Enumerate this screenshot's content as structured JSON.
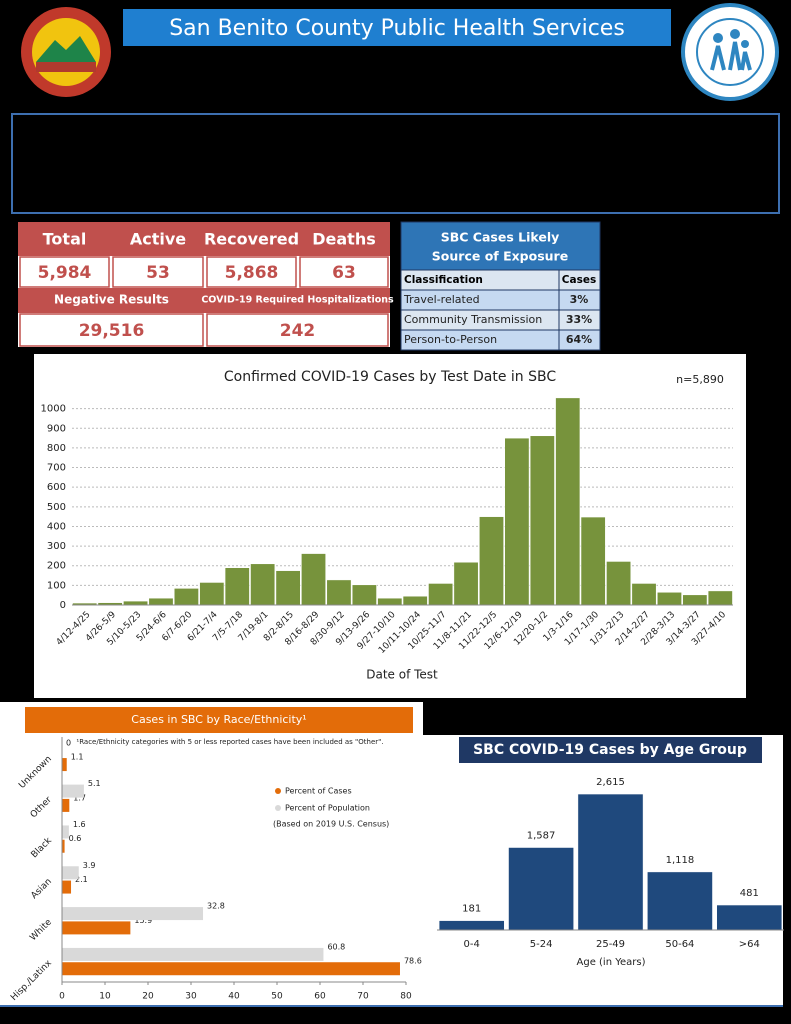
{
  "header": {
    "title": "San Benito County Public Health Services"
  },
  "summary": {
    "headers": [
      "Total",
      "Active",
      "Recovered",
      "Deaths"
    ],
    "values": [
      "5,984",
      "53",
      "5,868",
      "63"
    ],
    "headers2": [
      "Negative Results",
      "COVID-19 Required Hospitalizations"
    ],
    "values2": [
      "29,516",
      "242"
    ]
  },
  "exposure": {
    "title_lines": [
      "SBC Cases Likely",
      "Source of Exposure"
    ],
    "columns": [
      "Classification",
      "Cases"
    ],
    "rows": [
      [
        "Travel-related",
        "3%"
      ],
      [
        "Community Transmission",
        "33%"
      ],
      [
        "Person-to-Person",
        "64%"
      ]
    ]
  },
  "chart_data": [
    {
      "type": "bar",
      "title": "Confirmed COVID-19 Cases by Test Date in SBC",
      "annotation": "n=5,890",
      "xlabel": "Date of Test",
      "categories": [
        "4/12-4/25",
        "4/26-5/9",
        "5/10-5/23",
        "5/24-6/6",
        "6/7-6/20",
        "6/21-7/4",
        "7/5-7/18",
        "7/19-8/1",
        "8/2-8/15",
        "8/16-8/29",
        "8/30-9/12",
        "9/13-9/26",
        "9/27-10/10",
        "10/11-10/24",
        "10/25-11/7",
        "11/8-11/21",
        "11/22-12/5",
        "12/6-12/19",
        "12/20-1/2",
        "1/3-1/16",
        "1/17-1/30",
        "1/31-2/13",
        "2/14-2/27",
        "2/28-3/13",
        "3/14-3/27",
        "3/27-4/10"
      ],
      "values": [
        10,
        12,
        20,
        35,
        85,
        115,
        190,
        210,
        175,
        262,
        128,
        103,
        35,
        45,
        110,
        218,
        450,
        850,
        862,
        1055,
        448,
        222,
        110,
        65,
        52,
        72
      ],
      "color": "#77933c",
      "ylim": [
        0,
        1100
      ],
      "yticks": [
        0,
        100,
        200,
        300,
        400,
        500,
        600,
        700,
        800,
        900,
        1000
      ],
      "grid": true
    },
    {
      "type": "bar",
      "orientation": "horizontal",
      "title": "Cases in SBC by Race/Ethnicity¹",
      "note": "¹Race/Ethnicity categories with 5 or less reported cases have been included as \"Other\".",
      "categories": [
        "Unknown",
        "Other",
        "Black",
        "Asian",
        "White",
        "Hisp./Latinx"
      ],
      "series": [
        {
          "name": "Percent of Cases",
          "color": "#e36c09",
          "values": [
            1.1,
            1.7,
            0.6,
            2.1,
            15.9,
            78.6
          ]
        },
        {
          "name": "Percent of Population",
          "color": "#d9d9d9",
          "values": [
            0,
            5.1,
            1.6,
            3.9,
            32.8,
            60.8
          ]
        }
      ],
      "legend_note": "(Based on 2019 U.S. Census)",
      "xlim": [
        0,
        80
      ],
      "xticks": [
        0,
        10,
        20,
        30,
        40,
        50,
        60,
        70,
        80
      ]
    },
    {
      "type": "bar",
      "title": "SBC COVID-19 Cases by Age Group",
      "xlabel": "Age (in Years)",
      "categories": [
        "0-4",
        "5-24",
        "25-49",
        "50-64",
        ">64"
      ],
      "values": [
        181,
        1587,
        2615,
        1118,
        481
      ],
      "value_labels": [
        "181",
        "1,587",
        "2,615",
        "1,118",
        "481"
      ],
      "color": "#1f497d",
      "ylim": [
        0,
        3000
      ]
    }
  ]
}
